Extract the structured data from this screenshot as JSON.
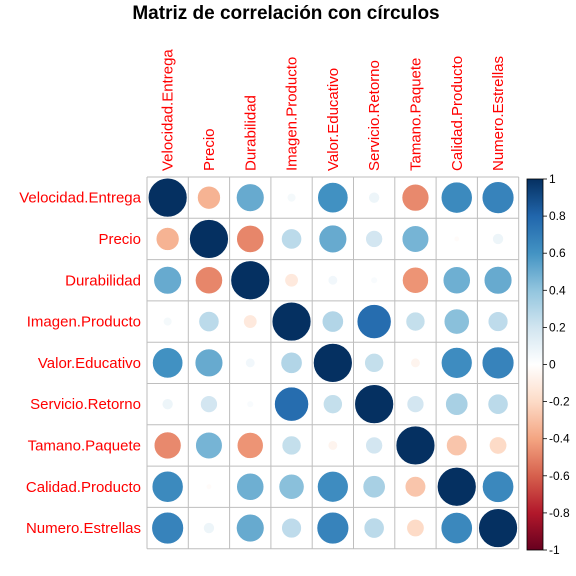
{
  "chart_data": {
    "type": "heatmap",
    "title": "Matriz de correlación con círculos",
    "variables": [
      "Velocidad.Entrega",
      "Precio",
      "Durabilidad",
      "Imagen.Producto",
      "Valor.Educativo",
      "Servicio.Retorno",
      "Tamano.Paquete",
      "Calidad.Producto",
      "Numero.Estrellas"
    ],
    "matrix": [
      [
        1.0,
        -0.35,
        0.51,
        0.05,
        0.61,
        0.08,
        -0.48,
        0.64,
        0.67
      ],
      [
        -0.35,
        1.0,
        -0.49,
        0.27,
        0.51,
        0.19,
        0.47,
        -0.02,
        0.08
      ],
      [
        0.51,
        -0.49,
        1.0,
        -0.12,
        0.06,
        0.03,
        -0.45,
        0.49,
        0.51
      ],
      [
        0.05,
        0.27,
        -0.12,
        1.0,
        0.3,
        0.77,
        0.24,
        0.42,
        0.26
      ],
      [
        0.61,
        0.51,
        0.06,
        0.3,
        1.0,
        0.24,
        -0.06,
        0.63,
        0.67
      ],
      [
        0.08,
        0.19,
        0.03,
        0.77,
        0.24,
        1.0,
        0.19,
        0.33,
        0.27
      ],
      [
        -0.48,
        0.47,
        -0.45,
        0.24,
        -0.06,
        0.19,
        1.0,
        -0.28,
        -0.2
      ],
      [
        0.64,
        -0.02,
        0.49,
        0.42,
        0.63,
        0.33,
        -0.28,
        1.0,
        0.65
      ],
      [
        0.67,
        0.08,
        0.51,
        0.26,
        0.67,
        0.27,
        -0.2,
        0.65,
        1.0
      ]
    ],
    "colorbar": {
      "range": [
        -1,
        1
      ],
      "ticks": [
        "1",
        "0.8",
        "0.6",
        "0.4",
        "0.2",
        "0",
        "-0.2",
        "-0.4",
        "-0.6",
        "-0.8",
        "-1"
      ]
    },
    "colors": {
      "label": "#ff0000",
      "grid": "#bebebe",
      "low": "#67001f",
      "mid": "#ffffff",
      "high": "#053061"
    }
  }
}
